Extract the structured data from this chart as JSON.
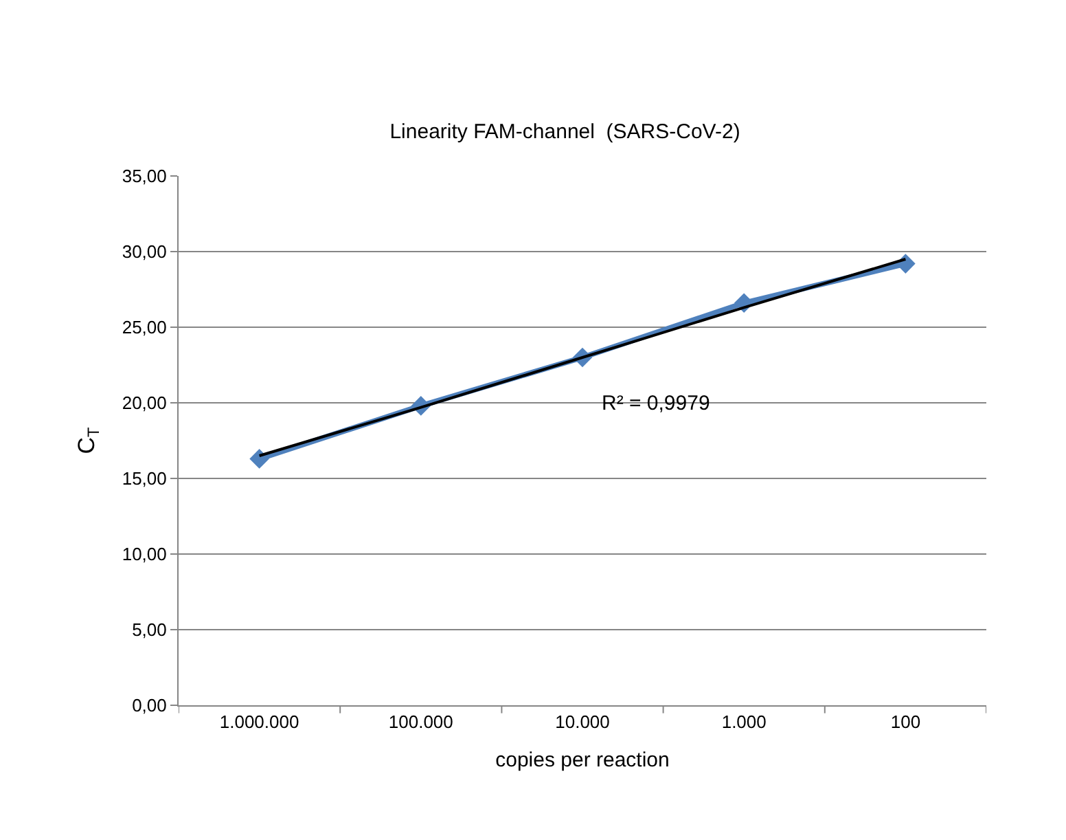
{
  "chart_data": {
    "type": "line",
    "title": "Linearity FAM-channel  (SARS-CoV-2)",
    "xlabel": "copies per reaction",
    "ylabel": "C$_{T}$",
    "categories": [
      "1.000.000",
      "100.000",
      "10.000",
      "1.000",
      "100"
    ],
    "series": [
      {
        "color": "#4f81bd",
        "values": [
          16.3,
          19.8,
          23.0,
          26.6,
          29.2
        ],
        "marker": "diamond"
      },
      {
        "type": "line",
        "color": "#000000",
        "values": [
          16.5,
          19.7,
          23.0,
          26.3,
          29.5
        ],
        "marker": "none"
      }
    ],
    "annotations": [
      "R² = 0,9979"
    ],
    "ylim": [
      0,
      35
    ],
    "yticks": [
      {
        "value": 0,
        "label": "0,00"
      },
      {
        "value": 5,
        "label": "5,00"
      },
      {
        "value": 10,
        "label": "10,00"
      },
      {
        "value": 15,
        "label": "15,00"
      },
      {
        "value": 20,
        "label": "20,00"
      },
      {
        "value": 25,
        "label": "25,00"
      },
      {
        "value": 30,
        "label": "30,00"
      },
      {
        "value": 35,
        "label": "35,00"
      }
    ],
    "grid": "y"
  }
}
